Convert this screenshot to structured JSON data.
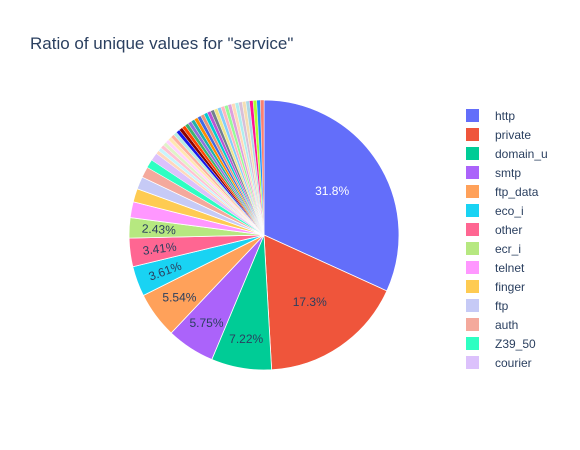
{
  "chart_data": {
    "type": "pie",
    "title": "Ratio of unique values for \"service\"",
    "slices": [
      {
        "label": "http",
        "percent": 31.8,
        "color": "#636efa"
      },
      {
        "label": "private",
        "percent": 17.3,
        "color": "#EF553B"
      },
      {
        "label": "domain_u",
        "percent": 7.22,
        "color": "#00cc96"
      },
      {
        "label": "smtp",
        "percent": 5.75,
        "color": "#ab63fa"
      },
      {
        "label": "ftp_data",
        "percent": 5.54,
        "color": "#FFA15A"
      },
      {
        "label": "eco_i",
        "percent": 3.61,
        "color": "#19d3f3"
      },
      {
        "label": "other",
        "percent": 3.41,
        "color": "#FF6692"
      },
      {
        "label": "ecr_i",
        "percent": 2.43,
        "color": "#B6E880"
      },
      {
        "label": "telnet",
        "percent": 1.9,
        "color": "#FF97FF"
      },
      {
        "label": "finger",
        "percent": 1.6,
        "color": "#FECB52"
      },
      {
        "label": "ftp",
        "percent": 1.5,
        "color": "#c6caf6"
      },
      {
        "label": "auth",
        "percent": 1.3,
        "color": "#f4a99c"
      },
      {
        "label": "Z39_50",
        "percent": 1.0,
        "color": "#2effc2"
      },
      {
        "label": "courier",
        "percent": 0.95,
        "color": "#dcc1fc"
      }
    ],
    "other_slice_colors": [
      "#ffd8bd",
      "#c8f4fc",
      "#ffc2d3",
      "#e0f3c8",
      "#ffd3ff",
      "#ffe7b2",
      "#ffb0a0",
      "#b8ece0",
      "#1717e8",
      "#8b0000",
      "#ff4500",
      "#3cb371",
      "#9370db",
      "#20b2aa",
      "#ff8c00",
      "#4169e1",
      "#e9967a",
      "#00ced1",
      "#ba55d3",
      "#708090",
      "#f0e68c",
      "#87cefa",
      "#ffb6c1",
      "#98fb98",
      "#dda0dd",
      "#ffdab9",
      "#afeeee",
      "#d8bfd8",
      "#f5deb3",
      "#add8e6",
      "#ff1493",
      "#adff2f",
      "#1e90ff",
      "#fa8072"
    ],
    "text_label_threshold": 2.0
  }
}
